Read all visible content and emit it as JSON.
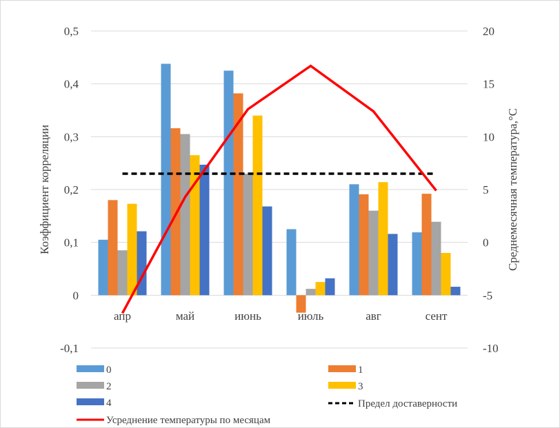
{
  "chart_data": {
    "type": "bar",
    "categories": [
      "апр",
      "май",
      "июнь",
      "июль",
      "авг",
      "сент"
    ],
    "series": [
      {
        "name": "0",
        "color": "#5B9BD5",
        "values": [
          0.105,
          0.438,
          0.425,
          0.125,
          0.21,
          0.119
        ]
      },
      {
        "name": "1",
        "color": "#ED7D31",
        "values": [
          0.18,
          0.316,
          0.382,
          -0.033,
          0.191,
          0.192
        ]
      },
      {
        "name": "2",
        "color": "#A5A5A5",
        "values": [
          0.085,
          0.305,
          0.23,
          0.012,
          0.16,
          0.139
        ]
      },
      {
        "name": "3",
        "color": "#FFC000",
        "values": [
          0.173,
          0.265,
          0.34,
          0.025,
          0.214,
          0.08
        ]
      },
      {
        "name": "4",
        "color": "#4472C4",
        "values": [
          0.121,
          0.247,
          0.168,
          0.032,
          0.116,
          0.016
        ]
      }
    ],
    "threshold": {
      "name": "Предел доставерности",
      "value": 0.23,
      "color": "#000000"
    },
    "temperature": {
      "name": "Усреднение температуры по месяцам",
      "color": "#FF0000",
      "values": [
        -6.7,
        4.3,
        12.6,
        16.7,
        12.4,
        4.9
      ]
    },
    "ylabel": "Коэффициент корреляции",
    "y2label": "Среднемесячная температура,°С",
    "ylim": [
      -0.1,
      0.5
    ],
    "y2lim": [
      -10,
      20
    ],
    "yticks": [
      "-0,1",
      "0",
      "0,1",
      "0,2",
      "0,3",
      "0,4",
      "0,5"
    ],
    "y2ticks": [
      "-10",
      "-5",
      "0",
      "5",
      "10",
      "15",
      "20"
    ],
    "grid": true,
    "legend_position": "bottom"
  }
}
